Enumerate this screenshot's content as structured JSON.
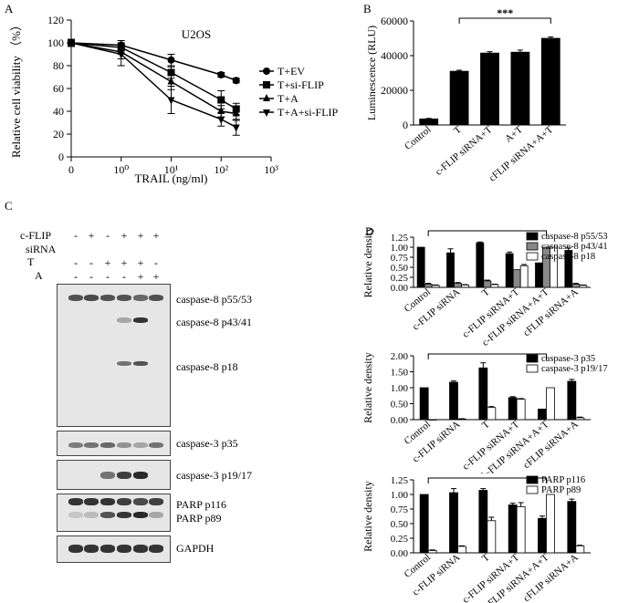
{
  "panel_labels": {
    "A": "A",
    "B": "B",
    "C": "C",
    "D": "D"
  },
  "chart_data": [
    {
      "id": "A",
      "type": "line",
      "title": "U2OS",
      "xlabel": "TRAIL (ng/ml)",
      "ylabel": "Relative cell viability （%）",
      "x_scale": "log",
      "x_ticks": [
        "0",
        "10⁰",
        "10¹",
        "10²",
        "10³"
      ],
      "x_tick_values": [
        0.1,
        1,
        10,
        100,
        1000
      ],
      "y_ticks": [
        0,
        20,
        40,
        60,
        80,
        100,
        120
      ],
      "ylim": [
        0,
        120
      ],
      "x": [
        0.1,
        1,
        10,
        100,
        200
      ],
      "series": [
        {
          "name": "T+EV",
          "marker": "circle",
          "values": [
            100,
            98,
            85,
            72,
            67
          ],
          "err": [
            3,
            4,
            5,
            2,
            2
          ]
        },
        {
          "name": "T+si-FLIP",
          "marker": "square",
          "values": [
            100,
            96,
            74,
            50,
            42
          ],
          "err": [
            3,
            4,
            5,
            8,
            5
          ]
        },
        {
          "name": "T+A",
          "marker": "triangle-up",
          "values": [
            100,
            92,
            66,
            40,
            38
          ],
          "err": [
            3,
            6,
            7,
            5,
            6
          ]
        },
        {
          "name": "T+A+si-FLIP",
          "marker": "triangle-down",
          "values": [
            100,
            90,
            50,
            33,
            26
          ],
          "err": [
            3,
            10,
            12,
            6,
            7
          ]
        }
      ],
      "legend_position": "right"
    },
    {
      "id": "B",
      "type": "bar",
      "ylabel": "Luminescence (RLU)",
      "categories": [
        "Control",
        "T",
        "c-FLIP siRNA+T",
        "A+T",
        "cFLIP siRNA+A+T"
      ],
      "values": [
        3500,
        31000,
        41500,
        42000,
        50000
      ],
      "err": [
        300,
        600,
        800,
        1200,
        800
      ],
      "y_ticks": [
        0,
        20000,
        40000,
        60000
      ],
      "ylim": [
        0,
        60000
      ],
      "significance": "***"
    },
    {
      "id": "D1",
      "type": "bar",
      "ylabel": "Relative density",
      "categories": [
        "Control",
        "c-FLIP siRNA",
        "T",
        "c-FLIP siRNA+T",
        "c-FLIP siRNA+A+T",
        "cFLIP siRNA+A"
      ],
      "y_ticks": [
        "0.00",
        "0.25",
        "0.50",
        "0.75",
        "1.00",
        "1.25"
      ],
      "ylim": [
        0,
        1.25
      ],
      "significance": "***",
      "series": [
        {
          "name": "caspase-8 p55/53",
          "fill": "#000000",
          "values": [
            1.0,
            0.86,
            1.11,
            0.84,
            0.61,
            0.92
          ],
          "err": [
            0,
            0.1,
            0.02,
            0.04,
            0,
            0.06
          ]
        },
        {
          "name": "caspase-8 p43/41",
          "fill": "#888888",
          "values": [
            0.08,
            0.1,
            0.16,
            0.44,
            1.0,
            0.08
          ],
          "err": [
            0.02,
            0.02,
            0.02,
            0,
            0,
            0.02
          ]
        },
        {
          "name": "caspase-8 p18",
          "fill": "#ffffff",
          "values": [
            0.05,
            0.06,
            0.07,
            0.54,
            1.0,
            0.05
          ],
          "err": [
            0.01,
            0.01,
            0.01,
            0.03,
            0,
            0.01
          ]
        }
      ]
    },
    {
      "id": "D2",
      "type": "bar",
      "ylabel": "Relative density",
      "categories": [
        "Control",
        "c-FLIP siRNA",
        "T",
        "c-FLIP siRNA+T",
        "c-FLIP siRNA+A+T",
        "cFLIP siRNA+A"
      ],
      "y_ticks": [
        "0.00",
        "0.50",
        "1.00",
        "1.50",
        "2.00"
      ],
      "ylim": [
        0,
        2.0
      ],
      "significance": "***",
      "series": [
        {
          "name": "caspase-3 p35",
          "fill": "#000000",
          "values": [
            1.0,
            1.17,
            1.62,
            0.69,
            0.33,
            1.2
          ],
          "err": [
            0,
            0.04,
            0.16,
            0.03,
            0,
            0.06
          ]
        },
        {
          "name": "caspase-3 p19/17",
          "fill": "#ffffff",
          "values": [
            0.0,
            0.02,
            0.38,
            0.64,
            1.0,
            0.06
          ],
          "err": [
            0,
            0.01,
            0.03,
            0.02,
            0,
            0.02
          ]
        }
      ]
    },
    {
      "id": "D3",
      "type": "bar",
      "ylabel": "Relative density",
      "categories": [
        "Control",
        "c-FLIP siRNA",
        "T",
        "c-FLIP siRNA+T",
        "c-FLIP siRNA+A+T",
        "cFLIP siRNA+A"
      ],
      "y_ticks": [
        "0.00",
        "0.25",
        "0.50",
        "0.75",
        "1.00",
        "1.25"
      ],
      "ylim": [
        0,
        1.25
      ],
      "significance": "***",
      "series": [
        {
          "name": "PARP p116",
          "fill": "#000000",
          "values": [
            1.0,
            1.03,
            1.07,
            0.82,
            0.59,
            0.88
          ],
          "err": [
            0,
            0.07,
            0.03,
            0.03,
            0.04,
            0.04
          ]
        },
        {
          "name": "PARP p89",
          "fill": "#ffffff",
          "values": [
            0.04,
            0.11,
            0.55,
            0.79,
            1.0,
            0.12
          ],
          "err": [
            0.01,
            0.01,
            0.06,
            0.07,
            0,
            0.01
          ]
        }
      ]
    }
  ],
  "blot": {
    "conditions": [
      {
        "label": "c-FLIP",
        "signs": [
          "-",
          "+",
          "-",
          "+",
          "+",
          "+"
        ]
      },
      {
        "label": "siRNA",
        "signs": []
      },
      {
        "label": "T",
        "signs": [
          "-",
          "-",
          "+",
          "+",
          "+",
          "-"
        ]
      },
      {
        "label": "A",
        "signs": [
          "-",
          "-",
          "-",
          "-",
          "+",
          "+"
        ]
      }
    ],
    "bands": [
      "caspase-8 p55/53",
      "caspase-8 p43/41",
      "caspase-8 p18",
      "caspase-3 p35",
      "caspase-3 p19/17",
      "PARP p116",
      "PARP p89",
      "GAPDH"
    ]
  }
}
